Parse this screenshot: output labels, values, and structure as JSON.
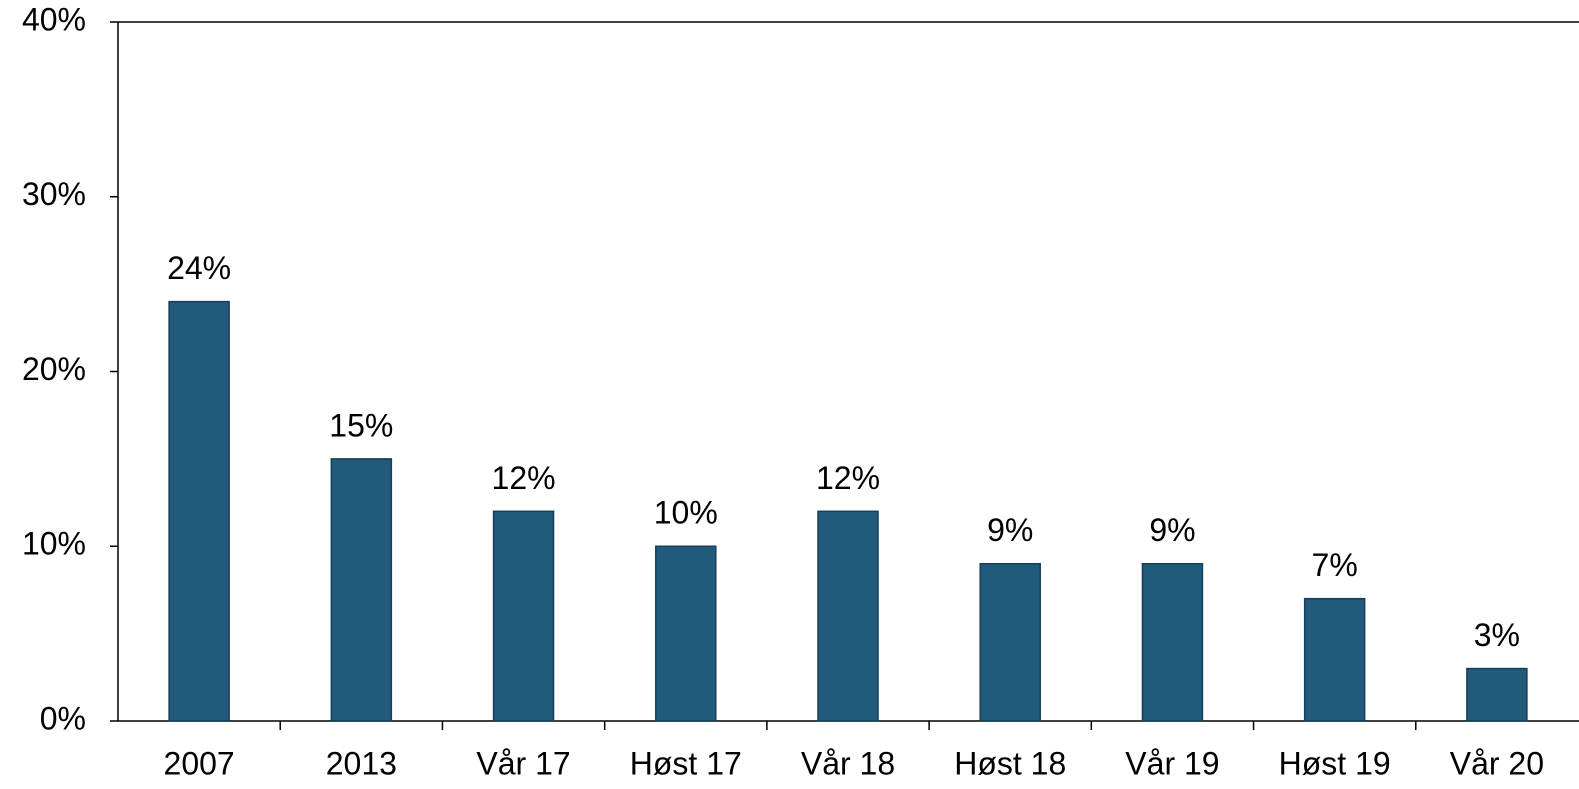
{
  "chart_data": {
    "type": "bar",
    "categories": [
      "2007",
      "2013",
      "Vår 17",
      "Høst 17",
      "Vår 18",
      "Høst 18",
      "Vår 19",
      "Høst 19",
      "Vår 20"
    ],
    "values": [
      24,
      15,
      12,
      10,
      12,
      9,
      9,
      7,
      3
    ],
    "value_labels": [
      "24%",
      "15%",
      "12%",
      "10%",
      "12%",
      "9%",
      "9%",
      "7%",
      "3%"
    ],
    "color": "#215a7a",
    "ylim": [
      0,
      40
    ],
    "yticks": [
      {
        "value": 0,
        "label": "0%"
      },
      {
        "value": 10,
        "label": "10%"
      },
      {
        "value": 20,
        "label": "20%"
      },
      {
        "value": 30,
        "label": "30%"
      },
      {
        "value": 40,
        "label": "40%"
      }
    ]
  }
}
